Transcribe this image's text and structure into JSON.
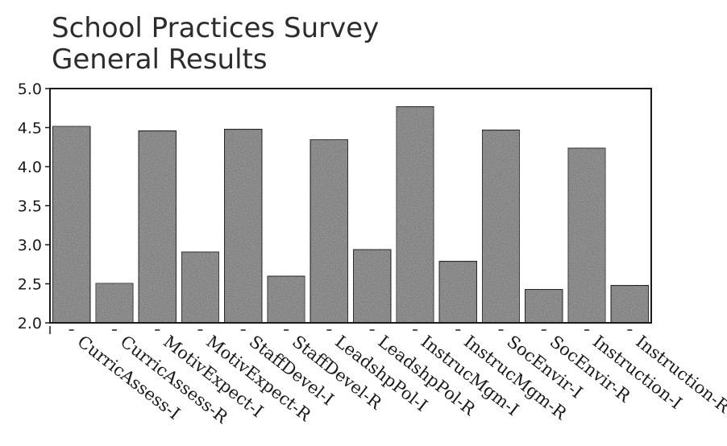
{
  "chart_data": {
    "type": "bar",
    "title": [
      "School Practices Survey",
      "General Results"
    ],
    "xlabel": "",
    "ylabel": "",
    "ylim": [
      2.0,
      5.0
    ],
    "yticks": [
      "2.0",
      "2.5",
      "3.0",
      "3.5",
      "4.0",
      "4.5",
      "5.0"
    ],
    "grid": false,
    "legend": "none",
    "bar_color": "#9a9a9a",
    "categories": [
      "CurricAssess-I",
      "CurricAssess-R",
      "MotivExpect-I",
      "MotivExpect-R",
      "StaffDevel-I",
      "StaffDevel-R",
      "LeadshpPol-I",
      "LeadshpPol-R",
      "InstrucMgm-I",
      "InstrucMgm-R",
      "SocEnvir-I",
      "SocEnvir-R",
      "Instruction-I",
      "Instruction-R"
    ],
    "values": [
      4.52,
      2.51,
      4.46,
      2.91,
      4.48,
      2.6,
      4.35,
      2.94,
      4.77,
      2.79,
      4.47,
      2.43,
      4.24,
      2.48
    ]
  }
}
